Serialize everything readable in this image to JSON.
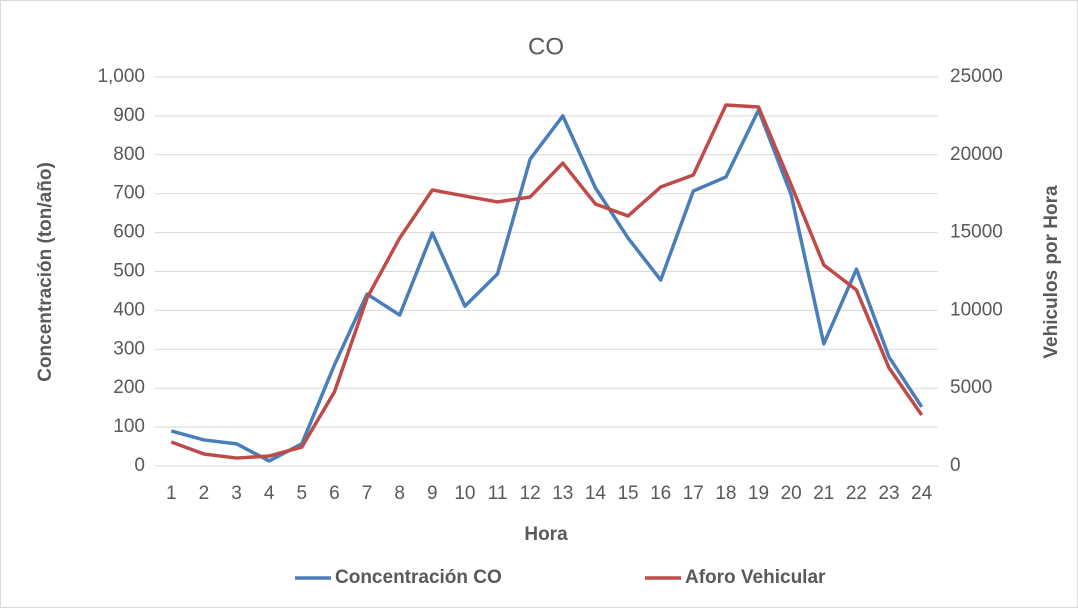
{
  "chart_data": {
    "type": "line",
    "title": "CO",
    "xlabel": "Hora",
    "ylabel": "Concentración (ton/año)",
    "y2label": "Vehiculos por Hora",
    "categories": [
      "1",
      "2",
      "3",
      "4",
      "5",
      "6",
      "7",
      "8",
      "9",
      "10",
      "11",
      "12",
      "13",
      "14",
      "15",
      "16",
      "17",
      "18",
      "19",
      "20",
      "21",
      "22",
      "23",
      "24"
    ],
    "series": [
      {
        "name": "Concentración CO",
        "color": "#4a7ebb",
        "axis": "y",
        "values": [
          90,
          67,
          57,
          13,
          57,
          260,
          442,
          388,
          599,
          411,
          494,
          789,
          900,
          715,
          586,
          478,
          707,
          743,
          915,
          697,
          314,
          506,
          280,
          152
        ]
      },
      {
        "name": "Aforo Vehicular",
        "color": "#be4b48",
        "axis": "y2",
        "values": [
          1540,
          770,
          510,
          640,
          1220,
          4760,
          10800,
          14650,
          17740,
          17350,
          16970,
          17290,
          19470,
          16840,
          16070,
          17930,
          18700,
          23200,
          23070,
          18060,
          12920,
          11310,
          6300,
          3280
        ]
      }
    ],
    "ylim": [
      0,
      1000
    ],
    "yticks": [
      0,
      100,
      200,
      300,
      400,
      500,
      600,
      700,
      800,
      900,
      {
        "value": 1000,
        "label": "1,000"
      }
    ],
    "y2lim": [
      0,
      25000
    ],
    "y2ticks": [
      0,
      5000,
      10000,
      15000,
      20000,
      25000
    ],
    "grid": true,
    "legend": "bottom"
  }
}
